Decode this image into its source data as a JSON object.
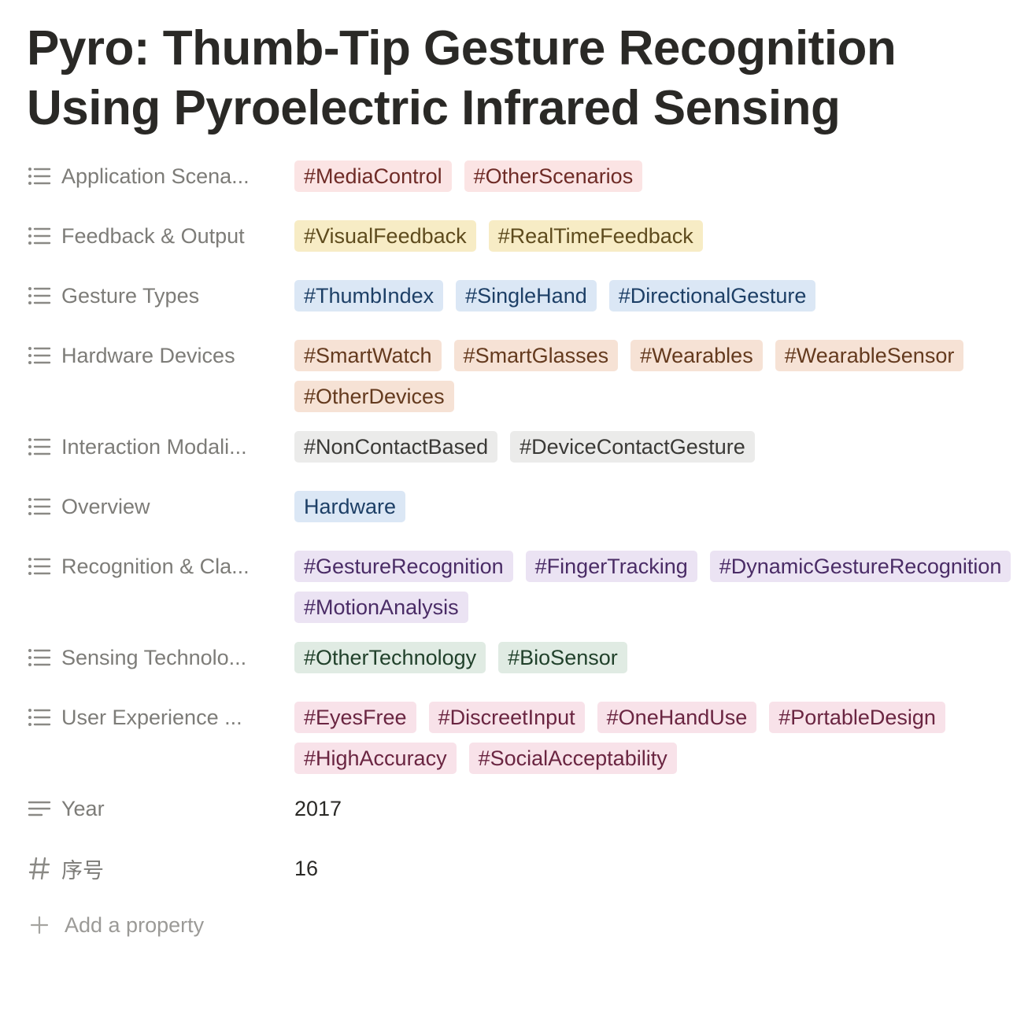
{
  "page": {
    "title": "Pyro: Thumb-Tip Gesture Recognition Using Pyroelectric Infrared Sensing"
  },
  "colors": {
    "red_bg": "#fbe4e4",
    "red_fg": "#6e2b26",
    "yellow_bg": "#f7ecc5",
    "yellow_fg": "#5e4b1d",
    "blue_bg": "#dbe7f5",
    "blue_fg": "#1d3f66",
    "orange_bg": "#f6e2d5",
    "orange_fg": "#643a1e",
    "gray_bg": "#ebebea",
    "gray_fg": "#3a3936",
    "purple_bg": "#ebe3f3",
    "purple_fg": "#4a2c66",
    "green_bg": "#e0ebe3",
    "green_fg": "#21412b",
    "pink_bg": "#f8e2e9",
    "pink_fg": "#6a2541"
  },
  "properties": [
    {
      "key": "Application Scena...",
      "icon": "list-icon",
      "tags": [
        {
          "text": "#MediaControl",
          "color": "red"
        },
        {
          "text": "#OtherScenarios",
          "color": "red"
        }
      ]
    },
    {
      "key": "Feedback & Output",
      "icon": "list-icon",
      "tags": [
        {
          "text": "#VisualFeedback",
          "color": "yellow"
        },
        {
          "text": "#RealTimeFeedback",
          "color": "yellow"
        }
      ]
    },
    {
      "key": "Gesture Types",
      "icon": "list-icon",
      "tags": [
        {
          "text": "#ThumbIndex",
          "color": "blue"
        },
        {
          "text": "#SingleHand",
          "color": "blue"
        },
        {
          "text": "#DirectionalGesture",
          "color": "blue"
        }
      ]
    },
    {
      "key": "Hardware Devices",
      "icon": "list-icon",
      "tags": [
        {
          "text": "#SmartWatch",
          "color": "orange"
        },
        {
          "text": "#SmartGlasses",
          "color": "orange"
        },
        {
          "text": "#Wearables",
          "color": "orange"
        },
        {
          "text": "#WearableSensor",
          "color": "orange"
        },
        {
          "text": "#OtherDevices",
          "color": "orange"
        }
      ]
    },
    {
      "key": "Interaction Modali...",
      "icon": "list-icon",
      "tags": [
        {
          "text": "#NonContactBased",
          "color": "gray"
        },
        {
          "text": "#DeviceContactGesture",
          "color": "gray"
        }
      ]
    },
    {
      "key": "Overview",
      "icon": "list-icon",
      "tags": [
        {
          "text": "Hardware",
          "color": "blue"
        }
      ]
    },
    {
      "key": "Recognition & Cla...",
      "icon": "list-icon",
      "tags": [
        {
          "text": "#GestureRecognition",
          "color": "purple"
        },
        {
          "text": "#FingerTracking",
          "color": "purple"
        },
        {
          "text": "#DynamicGestureRecognition",
          "color": "purple"
        },
        {
          "text": "#MotionAnalysis",
          "color": "purple"
        }
      ]
    },
    {
      "key": "Sensing Technolo...",
      "icon": "list-icon",
      "tags": [
        {
          "text": "#OtherTechnology",
          "color": "green"
        },
        {
          "text": "#BioSensor",
          "color": "green"
        }
      ]
    },
    {
      "key": "User Experience ...",
      "icon": "list-icon",
      "tags": [
        {
          "text": "#EyesFree",
          "color": "pink"
        },
        {
          "text": "#DiscreetInput",
          "color": "pink"
        },
        {
          "text": "#OneHandUse",
          "color": "pink"
        },
        {
          "text": "#PortableDesign",
          "color": "pink"
        },
        {
          "text": "#HighAccuracy",
          "color": "pink"
        },
        {
          "text": "#SocialAcceptability",
          "color": "pink"
        }
      ]
    },
    {
      "key": "Year",
      "icon": "text-icon",
      "value": "2017"
    },
    {
      "key": "序号",
      "icon": "number-icon",
      "value": "16"
    }
  ],
  "add_property": {
    "label": "Add a property",
    "icon": "plus-icon"
  }
}
